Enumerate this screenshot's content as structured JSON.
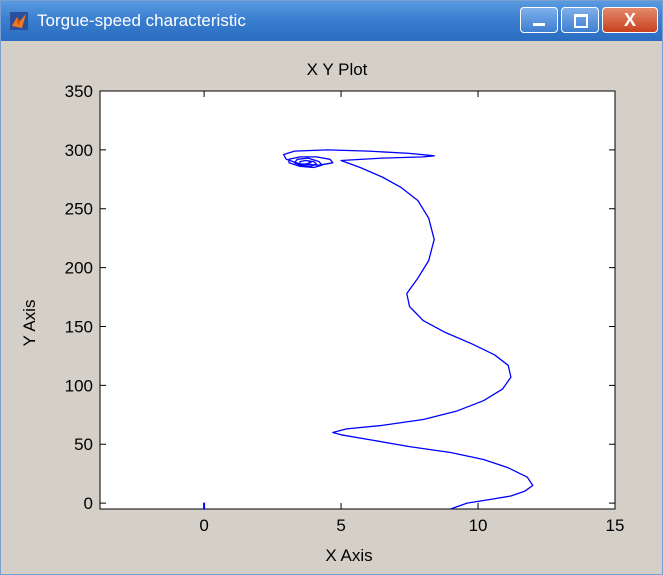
{
  "window": {
    "title": "Torgue-speed characteristic",
    "icon": "matlab-figure-icon",
    "controls": [
      "minimize-icon",
      "maximize-icon",
      "close-icon"
    ],
    "close_glyph": "X"
  },
  "chart_data": {
    "type": "line",
    "title": "X Y Plot",
    "xlabel": "X Axis",
    "ylabel": "Y Axis",
    "xlim": [
      -3.8,
      15
    ],
    "ylim": [
      -5,
      350
    ],
    "xticks": [
      0,
      5,
      10,
      15
    ],
    "yticks": [
      0,
      50,
      100,
      150,
      200,
      250,
      300,
      350
    ],
    "xtick_labels": [
      "0",
      "5",
      "10",
      "15"
    ],
    "ytick_labels": [
      "0",
      "50",
      "100",
      "150",
      "200",
      "250",
      "300",
      "350"
    ],
    "grid": false,
    "color": "#0000ff",
    "series": [
      {
        "x": [
          9.0,
          9.6,
          10.4,
          11.2,
          11.7,
          12.0,
          11.8,
          11.1,
          10.2,
          9.0,
          7.5,
          6.0,
          5.0,
          4.7,
          5.2,
          6.5,
          8.0,
          9.2,
          10.2,
          10.9,
          11.2,
          11.1,
          10.6,
          9.8,
          8.8,
          8.0,
          7.5,
          7.4,
          7.8,
          8.2,
          8.4,
          8.2,
          7.8,
          7.2,
          6.5,
          5.7,
          5.0,
          6.5,
          8.0,
          8.4,
          7.5,
          6.0,
          4.5,
          3.3,
          2.9,
          3.0,
          3.5,
          4.2,
          4.7,
          4.6,
          4.1,
          3.5,
          3.1,
          3.1,
          3.5,
          4.0,
          4.3,
          4.2,
          3.8,
          3.4,
          3.3,
          3.5,
          3.9,
          4.1,
          4.0,
          3.7,
          3.5,
          3.5,
          3.7,
          3.9,
          3.9,
          3.8
        ],
        "y": [
          -5,
          0,
          3,
          6,
          10,
          15,
          22,
          30,
          37,
          43,
          48,
          54,
          58,
          60,
          63,
          66,
          71,
          78,
          87,
          97,
          107,
          117,
          126,
          135,
          145,
          155,
          167,
          178,
          191,
          206,
          224,
          242,
          257,
          268,
          277,
          285,
          291,
          293,
          294,
          295,
          297,
          299,
          300,
          299,
          296,
          292,
          288,
          287,
          289,
          292,
          294,
          294,
          292,
          289,
          286,
          285,
          287,
          290,
          293,
          292,
          289,
          287,
          286,
          288,
          290,
          291,
          290,
          288,
          288,
          289,
          290,
          290
        ]
      },
      {
        "x": [
          0.0
        ],
        "y": [
          -3
        ]
      }
    ]
  }
}
